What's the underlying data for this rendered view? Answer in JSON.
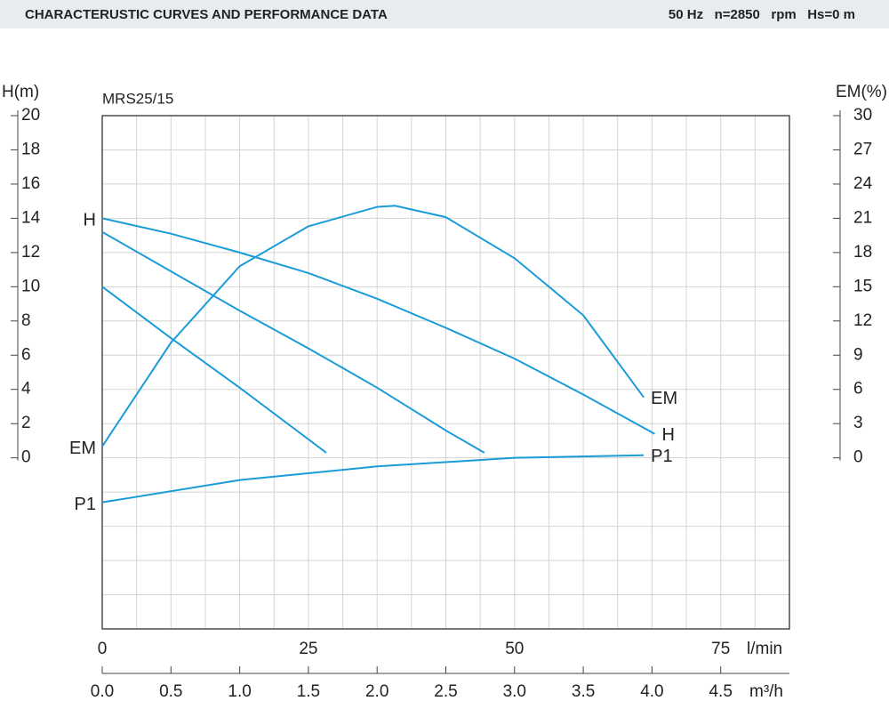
{
  "header": {
    "title": "CHARACTERUSTIC CURVES AND PERFORMANCE DATA",
    "conditions": "50 Hz   n=2850   rpm   Hs=0 m"
  },
  "chart_data": {
    "type": "line",
    "title": "MRS25/15",
    "ylabel": "H(m)",
    "y2label": "EM(%)",
    "xlabel": "m³/h",
    "x2label": "l/min",
    "xlim": [
      0,
      5
    ],
    "xticks": [
      {
        "value": 0,
        "label": "0.0"
      },
      0.5,
      {
        "value": 1,
        "label": "1.0"
      },
      1.5,
      {
        "value": 2,
        "label": "2.0"
      },
      2.5,
      {
        "value": 3,
        "label": "3.0"
      },
      3.5,
      {
        "value": 4,
        "label": "4.0"
      },
      4.5
    ],
    "x2lim": [
      0,
      83.33
    ],
    "x2ticks": [
      0,
      25,
      50,
      75
    ],
    "ylim": [
      -10,
      20
    ],
    "yticks": [
      0,
      2,
      4,
      6,
      8,
      10,
      12,
      14,
      16,
      18,
      20
    ],
    "y2lim": [
      -15,
      30
    ],
    "y2ticks": [
      0,
      3,
      6,
      9,
      12,
      15,
      18,
      21,
      24,
      27,
      30
    ],
    "xgrid": [
      0.25,
      0.5,
      0.75,
      1,
      1.25,
      1.5,
      1.75,
      2,
      2.25,
      2.5,
      2.75,
      3,
      3.25,
      3.5,
      3.75,
      4,
      4.25,
      4.5,
      4.75
    ],
    "ygrid": [
      -8,
      -6,
      -4,
      -2,
      0,
      2,
      4,
      6,
      8,
      10,
      12,
      14,
      16,
      18
    ],
    "grid": true,
    "series": [
      {
        "name": "H",
        "color": "#1a9cd8",
        "x": [
          0,
          0.5,
          1,
          1.5,
          2,
          2.5,
          3,
          3.5,
          4.02
        ],
        "values": [
          14,
          13.1,
          12.0,
          10.8,
          9.3,
          7.6,
          5.8,
          3.7,
          1.4
        ]
      },
      {
        "color": "#1a9cd8",
        "x": [
          0,
          0.5,
          1,
          1.5,
          2,
          2.5,
          2.78
        ],
        "values": [
          13.2,
          10.9,
          8.6,
          6.4,
          4.1,
          1.6,
          0.3
        ]
      },
      {
        "color": "#1a9cd8",
        "x": [
          0,
          0.5,
          1,
          1.63
        ],
        "values": [
          10,
          7.0,
          4.1,
          0.3
        ]
      },
      {
        "name": "EM",
        "color": "#1a9cd8",
        "axis": "y2",
        "x": [
          0,
          0.5,
          1,
          1.5,
          2,
          2.13,
          2.5,
          3,
          3.5,
          3.94
        ],
        "values": [
          1.0,
          10.1,
          16.8,
          20.3,
          22.0,
          22.1,
          21.1,
          17.5,
          12.5,
          5.3
        ]
      },
      {
        "name": "P1",
        "color": "#1a9cd8",
        "x": [
          0,
          1,
          2,
          3,
          3.94
        ],
        "values": [
          -2.6,
          -1.3,
          -0.5,
          0,
          0.15
        ]
      }
    ]
  }
}
